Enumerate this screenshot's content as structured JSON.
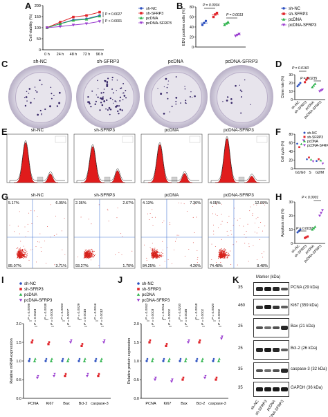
{
  "panels": {
    "A": "A",
    "B": "B",
    "C": "C",
    "D": "D",
    "E": "E",
    "F": "F",
    "G": "G",
    "H": "H",
    "I": "I",
    "J": "J",
    "K": "K"
  },
  "legend": [
    "sh-NC",
    "sh-SFRP3",
    "pcDNA",
    "pcDNA-SFRP3"
  ],
  "colors": {
    "sh-NC": "#2b4fbf",
    "sh-SFRP3": "#e0242a",
    "pcDNA": "#2bb24a",
    "pcDNA-SFRP3": "#9b3fd0"
  },
  "panelA": {
    "ylabel": "Cell viability (%)",
    "xticks": [
      "0 h",
      "24 h",
      "48 h",
      "72 h",
      "96 h"
    ],
    "yticks": [
      "0",
      "50",
      "100",
      "150",
      "200"
    ],
    "pvals": [
      "P = 0.0027",
      "P < 0.0001"
    ]
  },
  "panelB": {
    "ylabel": "EDU positive cells (%)",
    "yticks": [
      "0",
      "20",
      "40",
      "60",
      "80"
    ],
    "pvals": [
      "P = 0.0034",
      "P = 0.0013"
    ]
  },
  "panelC": {
    "titles": [
      "sh-NC",
      "sh-SFRP3",
      "pcDNA",
      "pcDNA-SFRP3"
    ]
  },
  "panelD": {
    "ylabel": "Clone rate (%)",
    "yticks": [
      "0",
      "10",
      "20",
      "30"
    ],
    "pvals": [
      "P = 0.0160",
      "P = 0.0235"
    ],
    "xlabels": [
      "sh-NC",
      "sh-SFRP3",
      "pcDNA",
      "pcDNA-SFRP3"
    ]
  },
  "panelE": {
    "titles": [
      "sh-NC",
      "sh-SFRP3",
      "pcDNA",
      "pcDNA-SFRP3"
    ]
  },
  "panelF": {
    "ylabel": "Cell cycle (%)",
    "xticks": [
      "G1/G0",
      "S",
      "G2/M"
    ],
    "yticks": [
      "0",
      "20",
      "40",
      "60",
      "80"
    ]
  },
  "panelG": {
    "titles": [
      "sh-NC",
      "sh-SFRP3",
      "pcDNA",
      "pcDNA-SFRP3"
    ],
    "quadrants": [
      {
        "ul": "5.17%",
        "ur": "6.05%",
        "ll": "85.07%",
        "lr": "3.71%"
      },
      {
        "ul": "2.36%",
        "ur": "2.67%",
        "ll": "93.27%",
        "lr": "1.70%"
      },
      {
        "ul": "4.13%",
        "ur": "7.36%",
        "ll": "84.25%",
        "lr": "4.26%"
      },
      {
        "ul": "4.05%",
        "ur": "12.99%",
        "ll": "74.48%",
        "lr": "8.48%"
      }
    ]
  },
  "panelH": {
    "ylabel": "Apoptosis rate (%)",
    "yticks": [
      "0",
      "10",
      "20",
      "30"
    ],
    "pvals": [
      "P = 0.0037",
      "P < 0.0001"
    ],
    "xlabels": [
      "sh-NC",
      "sh-SFRP3",
      "pcDNA",
      "pcDNA-SFRP3"
    ]
  },
  "panelI": {
    "ylabel": "Relative mRNA expression",
    "xticks": [
      "PCNA",
      "Ki67",
      "Bax",
      "Bcl-2",
      "caspase-3"
    ],
    "yticks": [
      "0.0",
      "0.5",
      "1.0",
      "1.5",
      "2.0"
    ],
    "pvals": [
      "P = 0.0006",
      "P = 0.0024",
      "P = 0.0038",
      "P = 0.0005",
      "P = 0.0003",
      "P = 0.0007",
      "P = 0.0029",
      "P = 0.0015",
      "P = 0.0016",
      "P = 0.0012"
    ]
  },
  "panelJ": {
    "ylabel": "Relative protein expression",
    "xticks": [
      "PCNA",
      "Ki67",
      "Bax",
      "Bcl-2",
      "caspase-3"
    ],
    "yticks": [
      "0.0",
      "0.5",
      "1.0",
      "1.5",
      "2.0"
    ],
    "pvals": [
      "P = 0.0002",
      "P = 0.0003",
      "P = 0.0011",
      "P = 0.0001",
      "P = 0.0230",
      "P = 0.0035",
      "P = 0.0018",
      "P = 0.0001",
      "P = 0.0020",
      "P = 0.0001"
    ]
  },
  "panelK": {
    "marker_label": "Marker (kDa)",
    "rows": [
      {
        "marker": "35",
        "label": "PCNA (29 kDa)"
      },
      {
        "marker": "460",
        "label": "Ki67 (359 kDa)"
      },
      {
        "marker": "25",
        "label": "Bax (21 kDa)"
      },
      {
        "marker": "25",
        "label": "Bcl-2 (26 kDa)"
      },
      {
        "marker": "35",
        "label": "caspase-3 (32 kDa)"
      },
      {
        "marker": "35",
        "label": "GAPDH (36 kDa)"
      }
    ],
    "xlabels": [
      "sh-NC",
      "sh-SFRP3",
      "pcDNA",
      "pcDNA-SFRP3"
    ]
  },
  "chart_data": [
    {
      "type": "line",
      "panel": "A",
      "x": [
        "0 h",
        "24 h",
        "48 h",
        "72 h",
        "96 h"
      ],
      "series": [
        {
          "name": "sh-NC",
          "values": [
            100,
            118,
            135,
            140,
            155
          ]
        },
        {
          "name": "sh-SFRP3",
          "values": [
            100,
            125,
            148,
            155,
            170
          ]
        },
        {
          "name": "pcDNA",
          "values": [
            100,
            117,
            133,
            138,
            152
          ]
        },
        {
          "name": "pcDNA-SFRP3",
          "values": [
            100,
            105,
            112,
            118,
            128
          ]
        }
      ],
      "ylabel": "Cell viability (%)",
      "ylim": [
        0,
        200
      ]
    },
    {
      "type": "scatter",
      "panel": "B",
      "categories": [
        "sh-NC",
        "sh-SFRP3",
        "pcDNA",
        "pcDNA-SFRP3"
      ],
      "series": [
        {
          "name": "sh-NC",
          "values": [
            44,
            48,
            52
          ]
        },
        {
          "name": "sh-SFRP3",
          "values": [
            60,
            65,
            68
          ]
        },
        {
          "name": "pcDNA",
          "values": [
            44,
            47,
            50
          ]
        },
        {
          "name": "pcDNA-SFRP3",
          "values": [
            22,
            24,
            26
          ]
        }
      ],
      "ylabel": "EDU positive cells (%)",
      "ylim": [
        0,
        80
      ]
    },
    {
      "type": "scatter",
      "panel": "D",
      "categories": [
        "sh-NC",
        "sh-SFRP3",
        "pcDNA",
        "pcDNA-SFRP3"
      ],
      "series": [
        {
          "name": "sh-NC",
          "values": [
            16,
            18,
            20
          ]
        },
        {
          "name": "sh-SFRP3",
          "values": [
            21,
            24,
            26
          ]
        },
        {
          "name": "pcDNA",
          "values": [
            15,
            17,
            19
          ]
        },
        {
          "name": "pcDNA-SFRP3",
          "values": [
            10,
            11,
            12
          ]
        }
      ],
      "ylabel": "Clone rate (%)",
      "ylim": [
        0,
        30
      ]
    },
    {
      "type": "scatter",
      "panel": "F",
      "categories": [
        "G1/G0",
        "S",
        "G2/M"
      ],
      "series": [
        {
          "name": "sh-NC",
          "values": [
            58,
            22,
            18
          ]
        },
        {
          "name": "sh-SFRP3",
          "values": [
            50,
            26,
            22
          ]
        },
        {
          "name": "pcDNA",
          "values": [
            57,
            21,
            19
          ]
        },
        {
          "name": "pcDNA-SFRP3",
          "values": [
            66,
            17,
            12
          ]
        }
      ],
      "ylabel": "Cell cycle (%)",
      "ylim": [
        0,
        80
      ]
    },
    {
      "type": "scatter",
      "panel": "H",
      "categories": [
        "sh-NC",
        "sh-SFRP3",
        "pcDNA",
        "pcDNA-SFRP3"
      ],
      "series": [
        {
          "name": "sh-NC",
          "values": [
            8,
            9,
            10
          ]
        },
        {
          "name": "sh-SFRP3",
          "values": [
            4,
            4.5,
            5
          ]
        },
        {
          "name": "pcDNA",
          "values": [
            10,
            11,
            12
          ]
        },
        {
          "name": "pcDNA-SFRP3",
          "values": [
            20,
            22,
            24
          ]
        }
      ],
      "ylabel": "Apoptosis rate (%)",
      "ylim": [
        0,
        30
      ]
    },
    {
      "type": "scatter",
      "panel": "I",
      "categories": [
        "PCNA",
        "Ki67",
        "Bax",
        "Bcl-2",
        "caspase-3"
      ],
      "series": [
        {
          "name": "sh-NC",
          "values": [
            1.0,
            1.0,
            1.0,
            1.0,
            1.0
          ]
        },
        {
          "name": "sh-SFRP3",
          "values": [
            1.5,
            1.45,
            0.6,
            1.4,
            0.6
          ]
        },
        {
          "name": "pcDNA",
          "values": [
            1.0,
            1.0,
            1.0,
            1.0,
            1.0
          ]
        },
        {
          "name": "pcDNA-SFRP3",
          "values": [
            0.55,
            0.6,
            1.5,
            0.6,
            1.5
          ]
        }
      ],
      "ylabel": "Relative mRNA expression",
      "ylim": [
        0,
        2
      ]
    },
    {
      "type": "scatter",
      "panel": "J",
      "categories": [
        "PCNA",
        "Ki67",
        "Bax",
        "Bcl-2",
        "caspase-3"
      ],
      "series": [
        {
          "name": "sh-NC",
          "values": [
            1.0,
            1.0,
            1.0,
            1.0,
            1.0
          ]
        },
        {
          "name": "sh-SFRP3",
          "values": [
            1.5,
            1.4,
            0.5,
            1.5,
            0.5
          ]
        },
        {
          "name": "pcDNA",
          "values": [
            1.0,
            1.0,
            1.0,
            1.0,
            1.0
          ]
        },
        {
          "name": "pcDNA-SFRP3",
          "values": [
            0.5,
            0.45,
            1.5,
            0.55,
            1.6
          ]
        }
      ],
      "ylabel": "Relative protein expression",
      "ylim": [
        0,
        2
      ]
    }
  ]
}
